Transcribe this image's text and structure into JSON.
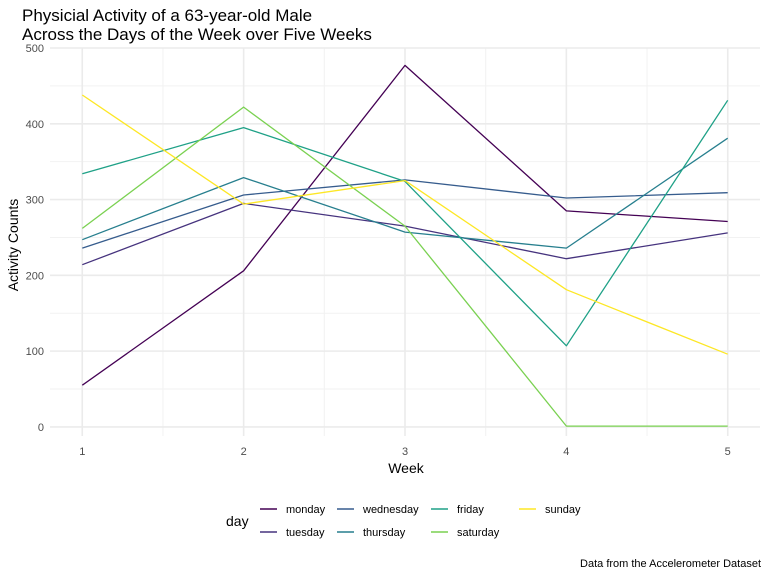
{
  "chart_data": {
    "type": "line",
    "title_lines": [
      "Physicial Activity of a 63-year-old Male",
      "Across the Days of the Week over Five Weeks"
    ],
    "xlabel": "Week",
    "ylabel": "Activity Counts",
    "caption": "Data from the Accelerometer Dataset",
    "x": [
      1,
      2,
      3,
      4,
      5
    ],
    "xlim": [
      0.8,
      5.2
    ],
    "ylim": [
      -12,
      500
    ],
    "x_ticks": [
      1,
      2,
      3,
      4,
      5
    ],
    "y_ticks": [
      0,
      100,
      200,
      300,
      400,
      500
    ],
    "grid": true,
    "legend_title": "day",
    "legend_position": "bottom",
    "series": [
      {
        "name": "monday",
        "color": "#440154",
        "values": [
          55,
          206,
          477,
          285,
          271
        ]
      },
      {
        "name": "tuesday",
        "color": "#46337e",
        "values": [
          214,
          295,
          265,
          222,
          256
        ]
      },
      {
        "name": "wednesday",
        "color": "#365c8d",
        "values": [
          236,
          306,
          326,
          302,
          309
        ]
      },
      {
        "name": "thursday",
        "color": "#277f8e",
        "values": [
          247,
          329,
          257,
          236,
          381
        ]
      },
      {
        "name": "friday",
        "color": "#1fa187",
        "values": [
          334,
          395,
          324,
          107,
          431
        ]
      },
      {
        "name": "saturday",
        "color": "#7ad151",
        "values": [
          262,
          422,
          265,
          1,
          1
        ]
      },
      {
        "name": "sunday",
        "color": "#fde725",
        "values": [
          438,
          294,
          325,
          181,
          96
        ]
      }
    ]
  }
}
